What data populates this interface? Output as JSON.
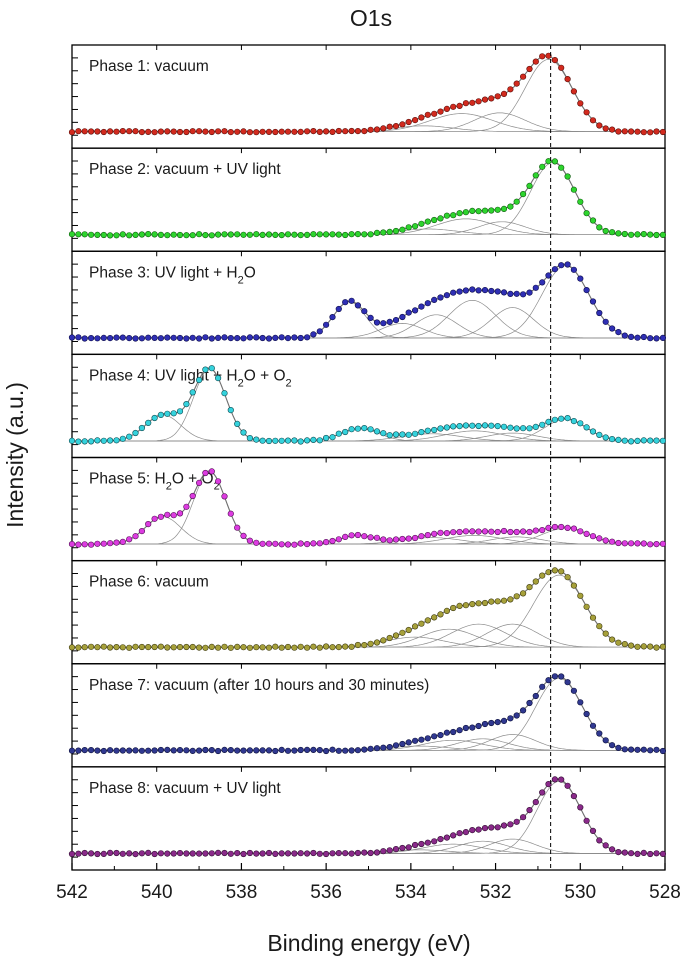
{
  "chart_data": {
    "type": "line",
    "title": "O1s",
    "xlabel": "Binding energy (eV)",
    "ylabel": "Intensity (a.u.)",
    "xlim": [
      542,
      528
    ],
    "x_reversed": true,
    "x_ticks": [
      542,
      540,
      538,
      536,
      534,
      532,
      530,
      528
    ],
    "grid": false,
    "reference_line_ev": 530.7,
    "panels": [
      {
        "label_parts": [
          {
            "t": "Phase 1: vacuum",
            "s": ""
          }
        ],
        "color": "#d22a1e",
        "edge": "#5a0c08",
        "baseline": 0.12,
        "peaks": [
          [
            530.75,
            1.0,
            0.55
          ],
          [
            531.9,
            0.26,
            0.6
          ],
          [
            532.8,
            0.25,
            0.75
          ],
          [
            533.7,
            0.08,
            0.7
          ]
        ]
      },
      {
        "label_parts": [
          {
            "t": "Phase 2: vacuum + UV light",
            "s": ""
          }
        ],
        "color": "#2ed42e",
        "edge": "#0c5a0c",
        "baseline": 0.12,
        "peaks": [
          [
            530.65,
            1.0,
            0.52
          ],
          [
            531.85,
            0.18,
            0.55
          ],
          [
            532.7,
            0.22,
            0.7
          ],
          [
            533.6,
            0.08,
            0.7
          ]
        ]
      },
      {
        "label_parts": [
          {
            "t": "Phase 3: UV light + H",
            "s": ""
          },
          {
            "t": "2",
            "s": "sub"
          },
          {
            "t": "O",
            "s": ""
          }
        ],
        "color": "#2f2fb4",
        "edge": "#0c0c4a",
        "baseline": 0.1,
        "peaks": [
          [
            530.35,
            1.0,
            0.55
          ],
          [
            531.6,
            0.42,
            0.5
          ],
          [
            532.55,
            0.52,
            0.55
          ],
          [
            533.4,
            0.32,
            0.5
          ],
          [
            534.2,
            0.2,
            0.5
          ],
          [
            535.45,
            0.5,
            0.38
          ]
        ]
      },
      {
        "label_parts": [
          {
            "t": "Phase 4: UV light + H",
            "s": ""
          },
          {
            "t": "2",
            "s": "sub"
          },
          {
            "t": "O + O",
            "s": ""
          },
          {
            "t": "2",
            "s": "sub"
          }
        ],
        "color": "#35d2dc",
        "edge": "#0c4a50",
        "baseline": 0.1,
        "peaks": [
          [
            538.75,
            1.0,
            0.38
          ],
          [
            539.85,
            0.36,
            0.42
          ],
          [
            530.35,
            0.3,
            0.5
          ],
          [
            531.6,
            0.11,
            0.6
          ],
          [
            532.5,
            0.14,
            0.7
          ],
          [
            533.5,
            0.1,
            0.7
          ],
          [
            535.2,
            0.17,
            0.45
          ]
        ]
      },
      {
        "label_parts": [
          {
            "t": "Phase 5: H",
            "s": ""
          },
          {
            "t": "2",
            "s": "sub"
          },
          {
            "t": "O + O",
            "s": ""
          },
          {
            "t": "2",
            "s": "sub"
          }
        ],
        "color": "#dc3ce0",
        "edge": "#500c52",
        "baseline": 0.1,
        "peaks": [
          [
            538.75,
            1.0,
            0.38
          ],
          [
            539.85,
            0.38,
            0.42
          ],
          [
            530.35,
            0.22,
            0.55
          ],
          [
            531.5,
            0.1,
            0.6
          ],
          [
            532.5,
            0.12,
            0.7
          ],
          [
            533.5,
            0.09,
            0.7
          ],
          [
            535.25,
            0.12,
            0.4
          ]
        ]
      },
      {
        "label_parts": [
          {
            "t": "Phase 6: vacuum",
            "s": ""
          }
        ],
        "color": "#a6a03a",
        "edge": "#3e3a10",
        "baseline": 0.12,
        "peaks": [
          [
            530.5,
            1.0,
            0.6
          ],
          [
            531.6,
            0.32,
            0.6
          ],
          [
            532.4,
            0.32,
            0.65
          ],
          [
            533.1,
            0.25,
            0.65
          ],
          [
            533.9,
            0.14,
            0.7
          ]
        ]
      },
      {
        "label_parts": [
          {
            "t": "Phase 7: vacuum (after 10 hours and 30 minutes)",
            "s": ""
          }
        ],
        "color": "#303890",
        "edge": "#0a0e3a",
        "baseline": 0.12,
        "peaks": [
          [
            530.5,
            1.0,
            0.55
          ],
          [
            531.6,
            0.22,
            0.55
          ],
          [
            532.3,
            0.16,
            0.6
          ],
          [
            533.0,
            0.14,
            0.7
          ],
          [
            533.8,
            0.06,
            0.7
          ]
        ]
      },
      {
        "label_parts": [
          {
            "t": "Phase 8: vacuum + UV light",
            "s": ""
          }
        ],
        "color": "#8a2a8a",
        "edge": "#300c30",
        "baseline": 0.12,
        "peaks": [
          [
            530.5,
            1.0,
            0.52
          ],
          [
            531.6,
            0.2,
            0.55
          ],
          [
            532.3,
            0.17,
            0.6
          ],
          [
            533.0,
            0.13,
            0.7
          ],
          [
            533.8,
            0.05,
            0.7
          ]
        ]
      }
    ]
  }
}
